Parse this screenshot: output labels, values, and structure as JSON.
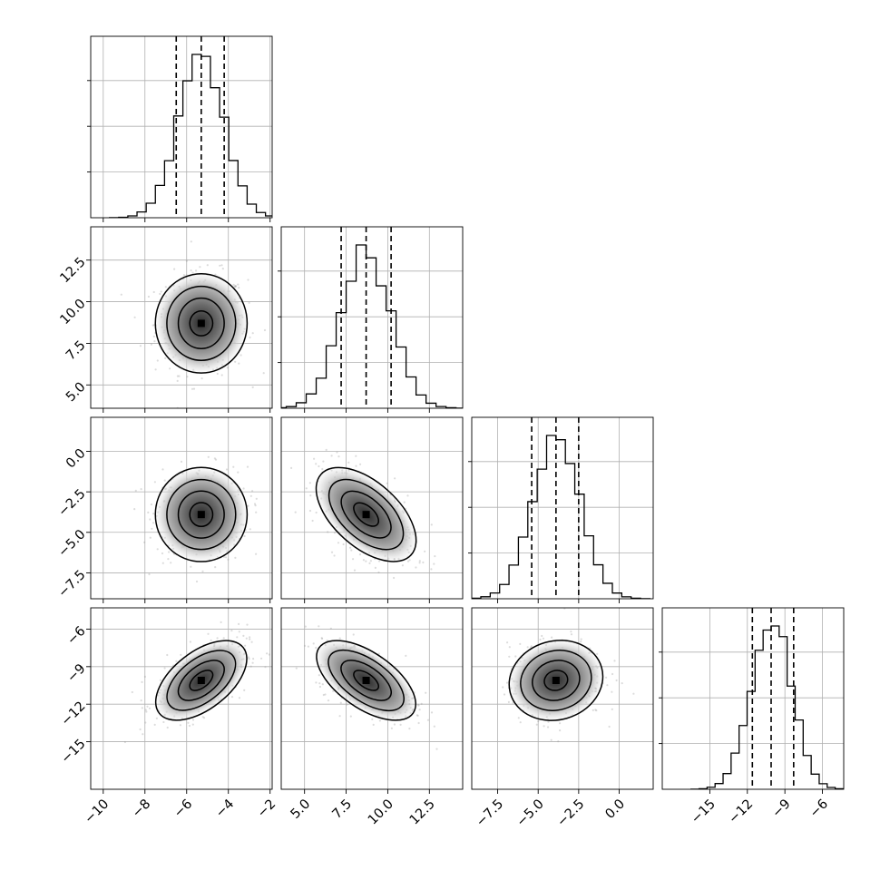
{
  "chart_data": {
    "type": "corner",
    "n_params": 4,
    "parameters": [
      {
        "range": [
          -10.6,
          -1.9
        ],
        "ticks": [
          -10,
          -8,
          -6,
          -4,
          -2
        ],
        "tick_labels": [
          "−10",
          "−8",
          "−6",
          "−4",
          "−2"
        ],
        "median": -5.3,
        "q16": -6.5,
        "q84": -4.2,
        "sigma": 1.1
      },
      {
        "range": [
          3.6,
          14.5
        ],
        "ticks": [
          5.0,
          7.5,
          10.0,
          12.5
        ],
        "tick_labels": [
          "5.0",
          "7.5",
          "10.0",
          "12.5"
        ],
        "median": 8.7,
        "q16": 7.2,
        "q84": 10.2,
        "sigma": 1.5
      },
      {
        "range": [
          -9.1,
          2.1
        ],
        "ticks": [
          -7.5,
          -5.0,
          -2.5,
          0.0
        ],
        "tick_labels": [
          "−7.5",
          "−5.0",
          "−2.5",
          "0.0"
        ],
        "median": -3.9,
        "q16": -5.4,
        "q84": -2.5,
        "sigma": 1.45
      },
      {
        "range": [
          -18.8,
          -4.3
        ],
        "ticks": [
          -15,
          -12,
          -9,
          -6
        ],
        "tick_labels": [
          "−15",
          "−12",
          "−9",
          "−6"
        ],
        "median": -10.1,
        "q16": -11.6,
        "q84": -8.3,
        "sigma": 1.6
      }
    ],
    "correlations": [
      [
        1.0,
        0.0,
        0.0,
        0.55
      ],
      [
        0.0,
        1.0,
        -0.55,
        -0.6
      ],
      [
        0.0,
        -0.55,
        1.0,
        0.1
      ],
      [
        0.55,
        -0.6,
        0.1,
        1.0
      ]
    ],
    "histogram_bins": 20,
    "quantile_lines": [
      "q16",
      "median",
      "q84"
    ],
    "contour_levels_sigma": [
      0.5,
      1.0,
      1.5,
      2.0
    ],
    "grid": true
  }
}
